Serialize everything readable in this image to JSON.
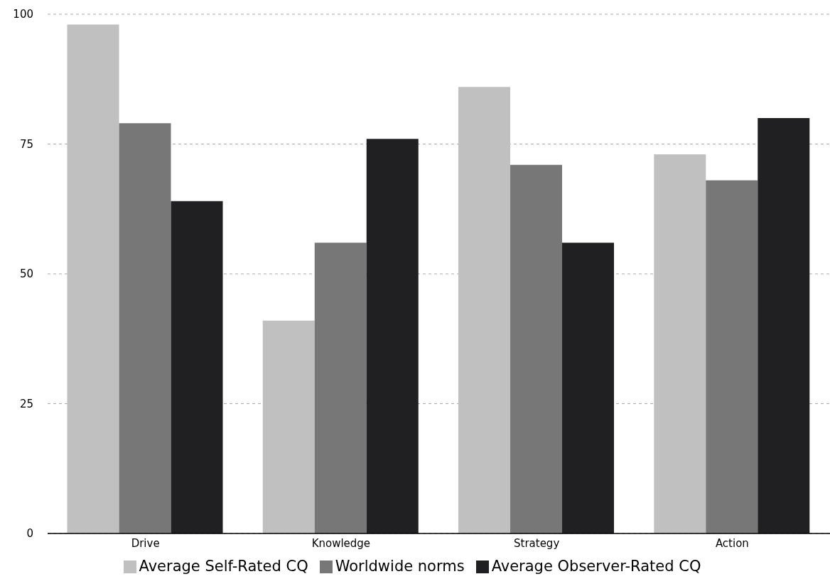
{
  "chart_data": {
    "type": "bar",
    "categories": [
      "Drive",
      "Knowledge",
      "Strategy",
      "Action"
    ],
    "series": [
      {
        "name": "Average Self-Rated CQ",
        "color": "#c0c0c0",
        "values": [
          98,
          41,
          86,
          73
        ]
      },
      {
        "name": "Worldwide norms",
        "color": "#777777",
        "values": [
          79,
          56,
          71,
          68
        ]
      },
      {
        "name": "Average Observer-Rated CQ",
        "color": "#202022",
        "values": [
          64,
          76,
          56,
          80
        ]
      }
    ],
    "ylim": [
      0,
      100
    ],
    "yticks": [
      0,
      25,
      50,
      75,
      100
    ],
    "grid": "y",
    "legend": "bottom"
  }
}
